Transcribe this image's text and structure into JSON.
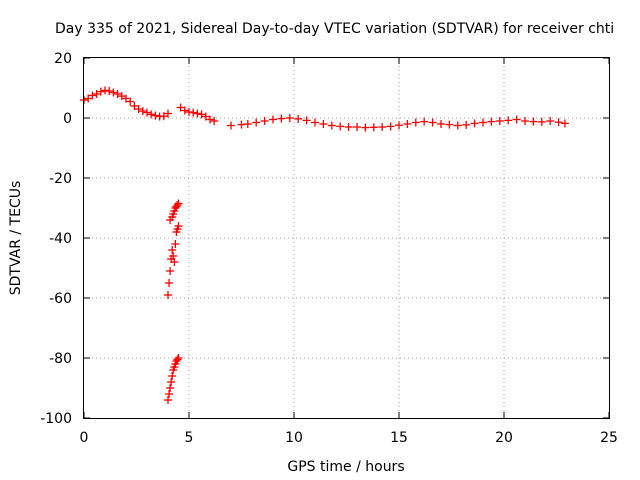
{
  "chart_data": {
    "type": "scatter",
    "title": "Day 335 of 2021, Sidereal Day-to-day VTEC variation (SDTVAR) for receiver chti",
    "xlabel": "GPS time / hours",
    "ylabel": "SDTVAR / TECUs",
    "xlim": [
      0,
      25
    ],
    "ylim": [
      -100,
      20
    ],
    "xticks": [
      "0",
      "5",
      "10",
      "15",
      "20",
      "25"
    ],
    "yticks": [
      "-100",
      "-80",
      "-60",
      "-40",
      "-20",
      "0",
      "20"
    ],
    "grid": true,
    "marker": "plus",
    "marker_color": "#ff0000",
    "series": [
      {
        "x": [
          0.0,
          0.2,
          0.4,
          0.6,
          0.8,
          1.0,
          1.2,
          1.4,
          1.6,
          1.8,
          2.0,
          2.2,
          2.4,
          2.6,
          2.8,
          3.0,
          3.2,
          3.4,
          3.6,
          3.8,
          4.0,
          4.1,
          4.2,
          4.25,
          4.3,
          4.35,
          4.4,
          4.45,
          4.5,
          4.0,
          4.05,
          4.1,
          4.15,
          4.2,
          4.25,
          4.3,
          4.35,
          4.4,
          4.45,
          4.5,
          4.0,
          4.05,
          4.1,
          4.15,
          4.2,
          4.25,
          4.3,
          4.35,
          4.4,
          4.45,
          4.5,
          4.6,
          4.8,
          5.0,
          5.2,
          5.4,
          5.6,
          5.8,
          6.0,
          6.2,
          7.0,
          7.5,
          7.8,
          8.2,
          8.6,
          9.0,
          9.4,
          9.8,
          10.2,
          10.6,
          11.0,
          11.4,
          11.8,
          12.2,
          12.6,
          13.0,
          13.4,
          13.8,
          14.2,
          14.6,
          15.0,
          15.4,
          15.8,
          16.2,
          16.6,
          17.0,
          17.4,
          17.8,
          18.2,
          18.6,
          19.0,
          19.4,
          19.8,
          20.2,
          20.6,
          21.0,
          21.4,
          21.8,
          22.2,
          22.6,
          22.9
        ],
        "y": [
          6,
          6.5,
          7.5,
          8,
          8.8,
          9.2,
          9,
          8.5,
          8,
          7.3,
          6.5,
          5.5,
          4,
          3,
          2.3,
          1.8,
          1.2,
          0.8,
          0.5,
          0.6,
          1.5,
          -34,
          -33,
          -32,
          -31,
          -30,
          -29.5,
          -29,
          -28.5,
          -59,
          -55,
          -51,
          -47,
          -44,
          -46,
          -48,
          -42,
          -38,
          -37,
          -36,
          -94,
          -92,
          -90,
          -88,
          -86,
          -84,
          -83,
          -82,
          -81,
          -80.5,
          -80,
          3.5,
          2.5,
          2,
          1.8,
          1.5,
          1.2,
          0.5,
          -0.5,
          -1,
          -2.5,
          -2.2,
          -2,
          -1.5,
          -1,
          -0.5,
          -0.2,
          0,
          -0.3,
          -0.8,
          -1.5,
          -2,
          -2.5,
          -2.8,
          -3,
          -3,
          -3.2,
          -3.1,
          -3,
          -2.8,
          -2.4,
          -2,
          -1.5,
          -1.2,
          -1.5,
          -2,
          -2.2,
          -2.5,
          -2.3,
          -1.8,
          -1.5,
          -1.2,
          -1,
          -0.8,
          -0.5,
          -1,
          -1.2,
          -1.3,
          -1,
          -1.4,
          -1.8
        ]
      }
    ]
  }
}
